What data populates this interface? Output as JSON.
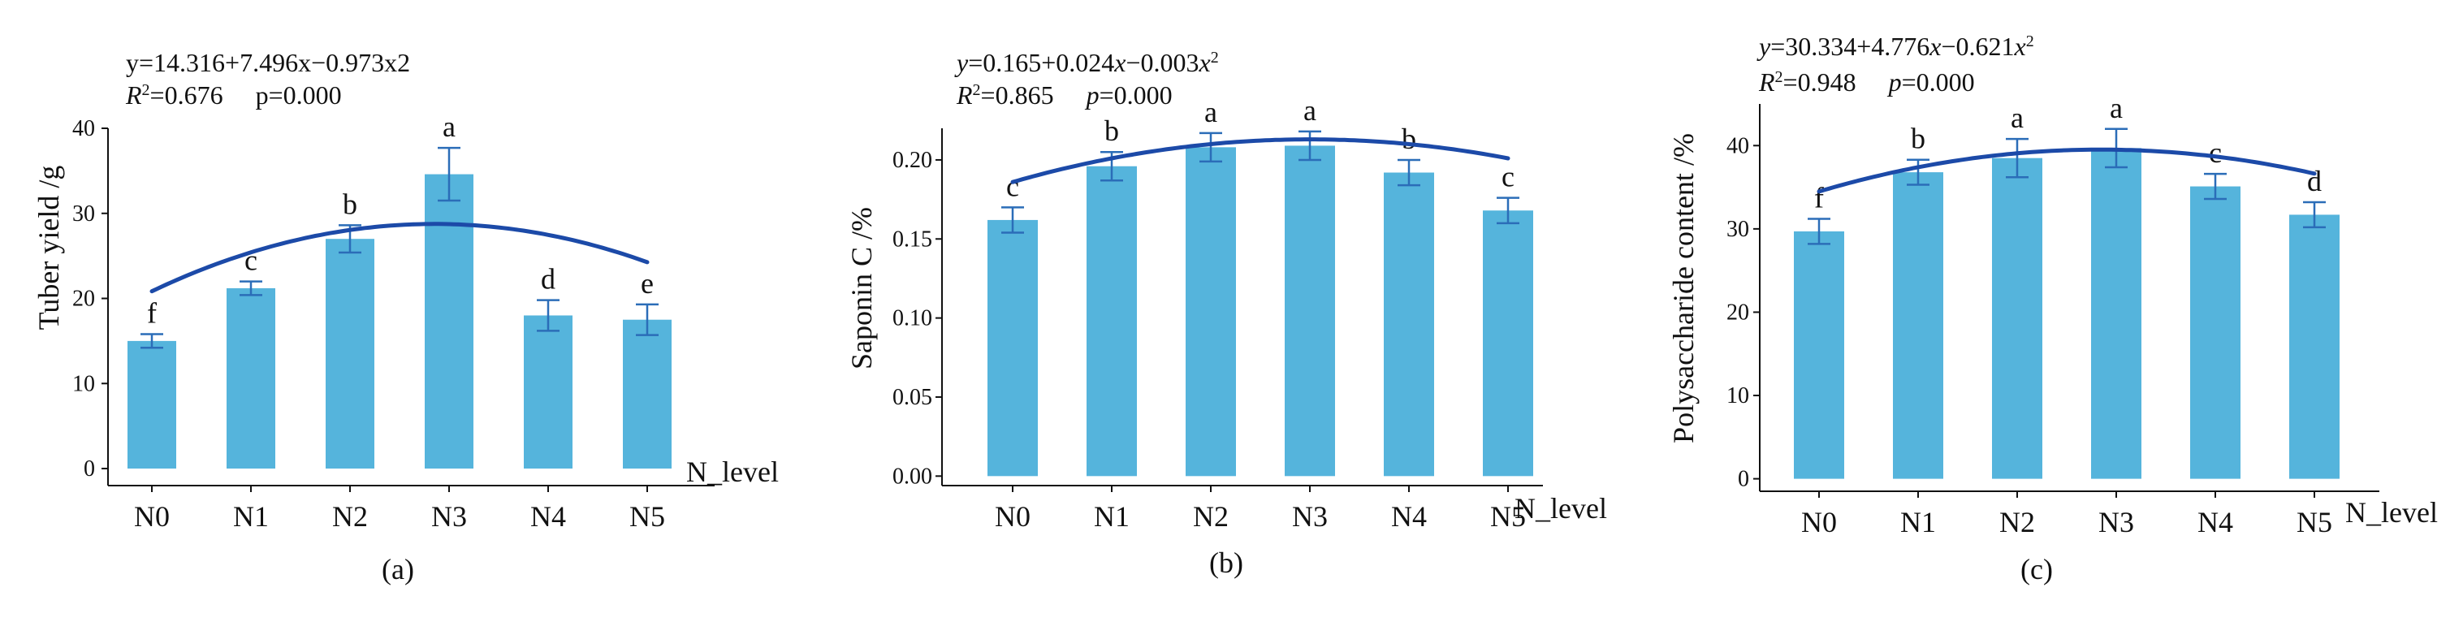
{
  "colors": {
    "bar": "#55b4dc",
    "curve": "#1c4aa8",
    "error_bar": "#2b6db8",
    "axis": "#111111"
  },
  "chart_data": [
    {
      "type": "bar",
      "panel_label": "(a)",
      "categories": [
        "N0",
        "N1",
        "N2",
        "N3",
        "N4",
        "N5"
      ],
      "values": [
        15.0,
        21.2,
        27.0,
        34.6,
        18.0,
        17.5
      ],
      "errors": [
        0.8,
        0.8,
        1.6,
        3.1,
        1.8,
        1.8
      ],
      "letters": [
        "f",
        "c",
        "b",
        "a",
        "d",
        "e"
      ],
      "fit": {
        "type": "quadratic",
        "a": 14.316,
        "b": 7.496,
        "c": -0.973
      },
      "equation": "y=14.316+7.496x−0.973x2",
      "r2_label": "R",
      "r2_sup": "2",
      "r2_value": "=0.676",
      "p_label": "p",
      "p_value": "=0.000",
      "xlabel": "N_level",
      "ylabel": "Tuber yield /g",
      "ylim": [
        -2,
        40
      ],
      "yticks": [
        0,
        10,
        20,
        30,
        40
      ],
      "ytick_labels": [
        "0",
        "10",
        "20",
        "30",
        "40"
      ],
      "grid": false
    },
    {
      "type": "bar",
      "panel_label": "(b)",
      "categories": [
        "N0",
        "N1",
        "N2",
        "N3",
        "N4",
        "N5"
      ],
      "values": [
        0.162,
        0.196,
        0.208,
        0.209,
        0.192,
        0.168
      ],
      "errors": [
        0.008,
        0.009,
        0.009,
        0.009,
        0.008,
        0.008
      ],
      "letters": [
        "c",
        "b",
        "a",
        "a",
        "b",
        "c"
      ],
      "fit": {
        "type": "quadratic",
        "a": 0.165,
        "b": 0.024,
        "c": -0.003
      },
      "equation_parts": [
        "y",
        "=0.165+0.024",
        "x",
        "−0.003",
        "x",
        "2"
      ],
      "r2_label": "R",
      "r2_sup": "2",
      "r2_value": "=0.865",
      "p_label": "p",
      "p_value": "=0.000",
      "xlabel": "N_level",
      "ylabel": "Saponin C /%",
      "ylim": [
        -0.006,
        0.22
      ],
      "yticks": [
        0,
        0.05,
        0.1,
        0.15,
        0.2
      ],
      "ytick_labels": [
        "0.00",
        "0.05",
        "0.10",
        "0.15",
        "0.20"
      ],
      "grid": false
    },
    {
      "type": "bar",
      "panel_label": "(c)",
      "categories": [
        "N0",
        "N1",
        "N2",
        "N3",
        "N4",
        "N5"
      ],
      "values": [
        29.7,
        36.8,
        38.5,
        39.7,
        35.1,
        31.7
      ],
      "errors": [
        1.5,
        1.5,
        2.3,
        2.3,
        1.5,
        1.5
      ],
      "letters": [
        "f",
        "b",
        "a",
        "a",
        "c",
        "d"
      ],
      "fit": {
        "type": "quadratic",
        "a": 30.334,
        "b": 4.776,
        "c": -0.621
      },
      "equation_parts": [
        "y",
        "=30.334+4.776",
        "x",
        "−0.621",
        "x",
        "2"
      ],
      "r2_label": "R",
      "r2_sup": "2",
      "r2_value": "=0.948",
      "p_label": "p",
      "p_value": "=0.000",
      "xlabel": "N_level",
      "ylabel": "Polysaccharide content /%",
      "ylim": [
        -1.5,
        45
      ],
      "yticks": [
        0,
        10,
        20,
        30,
        40
      ],
      "ytick_labels": [
        "0",
        "10",
        "20",
        "30",
        "40"
      ],
      "grid": false
    }
  ]
}
